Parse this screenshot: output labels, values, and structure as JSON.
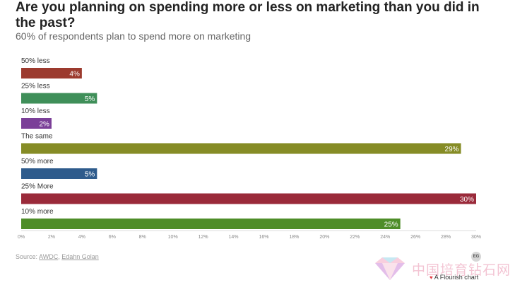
{
  "header": {
    "title": "Are you planning on spending more or less on marketing than you did in the past?",
    "subtitle": "60% of respondents plan to spend more on marketing"
  },
  "chart_data": {
    "type": "bar",
    "orientation": "horizontal",
    "title": "Are you planning on spending more or less on marketing than you did in the past?",
    "subtitle": "60% of respondents plan to spend more on marketing",
    "categories": [
      "50% less",
      "25% less",
      "10% less",
      "The same",
      "50% more",
      "25% More",
      "10% more"
    ],
    "values": [
      4,
      5,
      2,
      29,
      5,
      30,
      25
    ],
    "value_labels": [
      "4%",
      "5%",
      "2%",
      "29%",
      "5%",
      "30%",
      "25%"
    ],
    "colors": [
      "#9c3a2e",
      "#3f8f59",
      "#7b3f98",
      "#868c26",
      "#2e5b8c",
      "#9a2a3a",
      "#4e8d28"
    ],
    "xlim": [
      0,
      30
    ],
    "xticks": [
      0,
      2,
      4,
      6,
      8,
      10,
      12,
      14,
      16,
      18,
      20,
      22,
      24,
      26,
      28,
      30
    ],
    "xtick_labels": [
      "0%",
      "2%",
      "4%",
      "6%",
      "8%",
      "10%",
      "12%",
      "14%",
      "16%",
      "18%",
      "20%",
      "22%",
      "24%",
      "26%",
      "28%",
      "30%"
    ],
    "xlabel": "",
    "ylabel": "",
    "grid": false,
    "legend": "none"
  },
  "footer": {
    "source_prefix": "Source: ",
    "source_1": "AWDC",
    "source_sep": ", ",
    "source_2": "Edahn Golan",
    "flourish": "A Flourish chart",
    "badge": "EG"
  },
  "watermark": {
    "text": "中国培育钻石网"
  }
}
